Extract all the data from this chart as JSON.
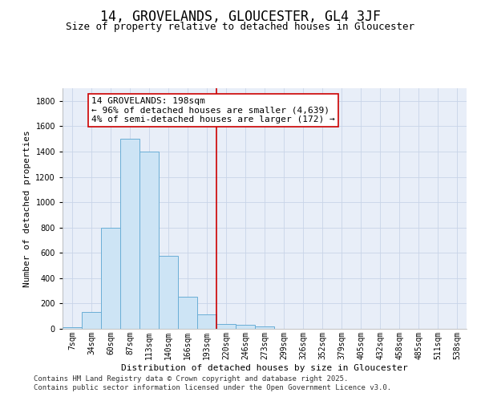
{
  "title": "14, GROVELANDS, GLOUCESTER, GL4 3JF",
  "subtitle": "Size of property relative to detached houses in Gloucester",
  "xlabel": "Distribution of detached houses by size in Gloucester",
  "ylabel": "Number of detached properties",
  "categories": [
    "7sqm",
    "34sqm",
    "60sqm",
    "87sqm",
    "113sqm",
    "140sqm",
    "166sqm",
    "193sqm",
    "220sqm",
    "246sqm",
    "273sqm",
    "299sqm",
    "326sqm",
    "352sqm",
    "379sqm",
    "405sqm",
    "432sqm",
    "458sqm",
    "485sqm",
    "511sqm",
    "538sqm"
  ],
  "values": [
    10,
    130,
    800,
    1500,
    1400,
    575,
    255,
    115,
    40,
    30,
    20,
    0,
    0,
    0,
    0,
    0,
    0,
    0,
    0,
    0,
    0
  ],
  "bar_color": "#cde4f5",
  "bar_edge_color": "#6aaed6",
  "vline_x_index": 7.5,
  "vline_color": "#cc0000",
  "annotation_text": "14 GROVELANDS: 198sqm\n← 96% of detached houses are smaller (4,639)\n4% of semi-detached houses are larger (172) →",
  "annotation_box_color": "#ffffff",
  "annotation_box_edge": "#cc0000",
  "ylim": [
    0,
    1900
  ],
  "yticks": [
    0,
    200,
    400,
    600,
    800,
    1000,
    1200,
    1400,
    1600,
    1800
  ],
  "grid_color": "#c8d4e8",
  "background_color": "#e8eef8",
  "footer_text": "Contains HM Land Registry data © Crown copyright and database right 2025.\nContains public sector information licensed under the Open Government Licence v3.0.",
  "title_fontsize": 12,
  "subtitle_fontsize": 9,
  "xlabel_fontsize": 8,
  "ylabel_fontsize": 8,
  "tick_fontsize": 7,
  "annotation_fontsize": 8,
  "footer_fontsize": 6.5
}
